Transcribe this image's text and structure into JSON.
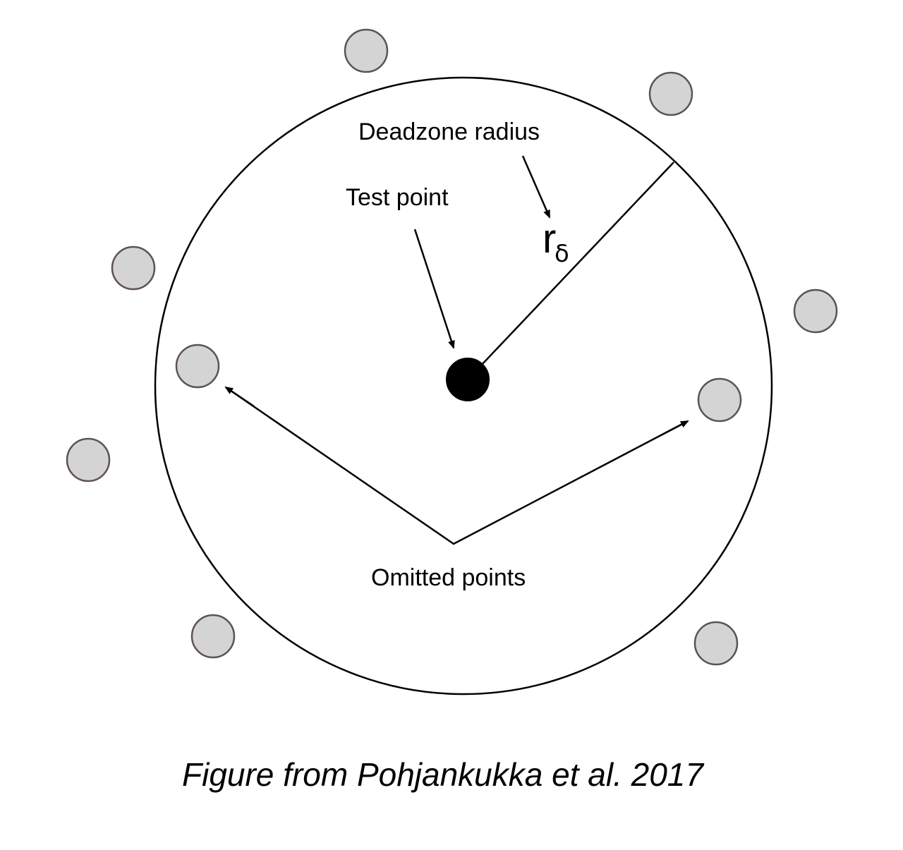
{
  "diagram": {
    "labels": {
      "deadzone_radius": "Deadzone radius",
      "test_point": "Test point",
      "radius_symbol": "r",
      "radius_subscript": "δ",
      "omitted_points": "Omitted points"
    },
    "caption": "Figure from Pohjankukka et al. 2017",
    "colors": {
      "outline": "#000000",
      "test_point_fill": "#000000",
      "other_point_fill": "#d4d4d4",
      "other_point_stroke": "#5e5252",
      "background": "#ffffff"
    }
  }
}
